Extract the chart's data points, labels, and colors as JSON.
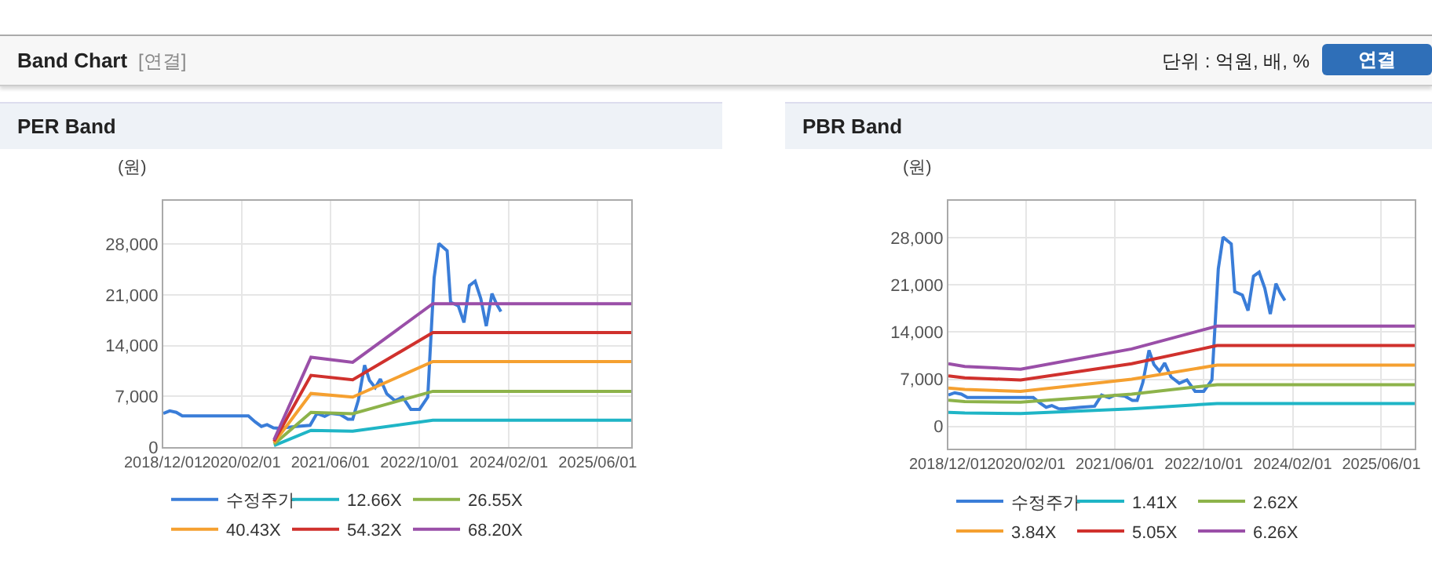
{
  "chart_data": [
    {
      "type": "line",
      "title": "PER Band",
      "ylabel": "(원)",
      "annotations": [
        "Band Chart",
        "[연결]",
        "단위 : 억원, 배, %",
        "연결"
      ],
      "xlim": [
        "2018-12-01",
        "2025-12-01"
      ],
      "xticks": [
        {
          "value": "2018-12-01",
          "label": "2018/12/01"
        },
        {
          "value": "2020-02-01",
          "label": "2020/02/01"
        },
        {
          "value": "2021-06-01",
          "label": "2021/06/01"
        },
        {
          "value": "2022-10-01",
          "label": "2022/10/01"
        },
        {
          "value": "2024-02-01",
          "label": "2024/02/01"
        },
        {
          "value": "2025-06-01",
          "label": "2025/06/01"
        }
      ],
      "ylim": [
        0,
        34000
      ],
      "yticks": [
        {
          "value": 0,
          "label": "0"
        },
        {
          "value": 7000,
          "label": "7,000"
        },
        {
          "value": 14000,
          "label": "14,000"
        },
        {
          "value": 21000,
          "label": "21,000"
        },
        {
          "value": 28000,
          "label": "28,000"
        }
      ],
      "grid": true,
      "legend": "bottom",
      "marker": "none",
      "line_style": "solid",
      "series": [
        {
          "name": "수정주가",
          "color": "#3a7dd8",
          "x": [
            "2018-12-01",
            "2019-01-05",
            "2019-02-10",
            "2019-03-15",
            "2020-03-10",
            "2020-04-15",
            "2020-05-20",
            "2020-06-20",
            "2020-07-25",
            "2020-08-25",
            "2020-11-25",
            "2021-02-10",
            "2021-03-20",
            "2021-05-01",
            "2021-06-01",
            "2021-07-25",
            "2021-09-05",
            "2021-10-01",
            "2021-11-01",
            "2021-12-05",
            "2022-01-01",
            "2022-02-01",
            "2022-03-01",
            "2022-04-05",
            "2022-05-20",
            "2022-07-01",
            "2022-08-15",
            "2022-10-01",
            "2022-11-15",
            "2022-12-20",
            "2023-01-15",
            "2023-03-01",
            "2023-03-20",
            "2023-05-01",
            "2023-06-01",
            "2023-07-01",
            "2023-08-01",
            "2023-09-01",
            "2023-10-01",
            "2023-11-01",
            "2023-11-25",
            "2023-12-20"
          ],
          "values": [
            4650,
            5000,
            4800,
            4300,
            4300,
            3500,
            2850,
            3100,
            2650,
            2600,
            2850,
            3000,
            4650,
            4250,
            4650,
            4500,
            3850,
            3850,
            6500,
            11300,
            9200,
            8200,
            9400,
            7350,
            6400,
            6900,
            5200,
            5200,
            6900,
            23400,
            28100,
            27100,
            20000,
            19500,
            17200,
            22300,
            22900,
            20500,
            16700,
            21200,
            19800,
            18700
          ]
        },
        {
          "name": "12.66X",
          "color": "#1fb5c6",
          "x": [
            "2020-07-28",
            "2021-02-15",
            "2021-10-01",
            "2022-12-13",
            "2025-12-01"
          ],
          "values": [
            200,
            2300,
            2200,
            3700,
            3700
          ]
        },
        {
          "name": "26.55X",
          "color": "#8db34a",
          "x": [
            "2020-07-28",
            "2021-02-15",
            "2021-10-01",
            "2022-12-13",
            "2025-12-01"
          ],
          "values": [
            400,
            4800,
            4600,
            7700,
            7700
          ]
        },
        {
          "name": "40.43X",
          "color": "#f5a030",
          "x": [
            "2020-07-28",
            "2021-02-15",
            "2021-10-01",
            "2022-12-13",
            "2025-12-01"
          ],
          "values": [
            600,
            7400,
            6900,
            11800,
            11800
          ]
        },
        {
          "name": "54.32X",
          "color": "#d0312d",
          "x": [
            "2020-07-28",
            "2021-02-15",
            "2021-10-01",
            "2022-12-13",
            "2025-12-01"
          ],
          "values": [
            800,
            9900,
            9300,
            15800,
            15800
          ]
        },
        {
          "name": "68.20X",
          "color": "#9a4fa8",
          "x": [
            "2020-07-28",
            "2021-02-15",
            "2021-10-01",
            "2022-12-13",
            "2025-12-01"
          ],
          "values": [
            1000,
            12400,
            11700,
            19800,
            19800
          ]
        }
      ]
    },
    {
      "type": "line",
      "title": "PBR Band",
      "ylabel": "(원)",
      "xlim": [
        "2018-12-01",
        "2025-12-01"
      ],
      "xticks": [
        {
          "value": "2018-12-01",
          "label": "2018/12/01"
        },
        {
          "value": "2020-02-01",
          "label": "2020/02/01"
        },
        {
          "value": "2021-06-01",
          "label": "2021/06/01"
        },
        {
          "value": "2022-10-01",
          "label": "2022/10/01"
        },
        {
          "value": "2024-02-01",
          "label": "2024/02/01"
        },
        {
          "value": "2025-06-01",
          "label": "2025/06/01"
        }
      ],
      "ylim": [
        -3300,
        33500
      ],
      "yticks": [
        {
          "value": 0,
          "label": "0"
        },
        {
          "value": 7000,
          "label": "7,000"
        },
        {
          "value": 14000,
          "label": "14,000"
        },
        {
          "value": 21000,
          "label": "21,000"
        },
        {
          "value": 28000,
          "label": "28,000"
        }
      ],
      "grid": true,
      "legend": "bottom",
      "marker": "none",
      "line_style": "solid",
      "series": [
        {
          "name": "수정주가",
          "color": "#3a7dd8",
          "x": [
            "2018-12-01",
            "2019-01-05",
            "2019-02-10",
            "2019-03-15",
            "2020-03-10",
            "2020-04-15",
            "2020-05-20",
            "2020-06-20",
            "2020-07-25",
            "2020-08-25",
            "2020-11-25",
            "2021-02-10",
            "2021-03-20",
            "2021-05-01",
            "2021-06-01",
            "2021-07-25",
            "2021-09-05",
            "2021-10-01",
            "2021-11-01",
            "2021-12-05",
            "2022-01-01",
            "2022-02-01",
            "2022-03-01",
            "2022-04-05",
            "2022-05-20",
            "2022-07-01",
            "2022-08-15",
            "2022-10-01",
            "2022-11-15",
            "2022-12-20",
            "2023-01-15",
            "2023-03-01",
            "2023-03-20",
            "2023-05-01",
            "2023-06-01",
            "2023-07-01",
            "2023-08-01",
            "2023-09-01",
            "2023-10-01",
            "2023-11-01",
            "2023-11-25",
            "2023-12-20"
          ],
          "values": [
            4650,
            5000,
            4800,
            4300,
            4300,
            3500,
            2850,
            3100,
            2650,
            2600,
            2850,
            3000,
            4650,
            4250,
            4650,
            4500,
            3850,
            3850,
            6500,
            11300,
            9200,
            8200,
            9400,
            7350,
            6400,
            6900,
            5200,
            5200,
            6900,
            23400,
            28100,
            27100,
            20000,
            19500,
            17200,
            22300,
            22900,
            20500,
            16700,
            21200,
            19800,
            18700
          ]
        },
        {
          "name": "1.41X",
          "color": "#1fb5c6",
          "x": [
            "2018-12-01",
            "2019-03-01",
            "2020-01-01",
            "2021-09-01",
            "2022-12-13",
            "2025-12-01"
          ],
          "values": [
            2100,
            2000,
            1900,
            2600,
            3400,
            3400
          ]
        },
        {
          "name": "2.62X",
          "color": "#8db34a",
          "x": [
            "2018-12-01",
            "2019-03-01",
            "2020-01-01",
            "2021-09-01",
            "2022-12-13",
            "2025-12-01"
          ],
          "values": [
            3900,
            3700,
            3600,
            4800,
            6200,
            6200
          ]
        },
        {
          "name": "3.84X",
          "color": "#f5a030",
          "x": [
            "2018-12-01",
            "2019-03-01",
            "2020-01-01",
            "2021-09-01",
            "2022-12-13",
            "2025-12-01"
          ],
          "values": [
            5700,
            5500,
            5200,
            7000,
            9100,
            9100
          ]
        },
        {
          "name": "5.05X",
          "color": "#d0312d",
          "x": [
            "2018-12-01",
            "2019-03-01",
            "2020-01-01",
            "2021-09-01",
            "2022-12-13",
            "2025-12-01"
          ],
          "values": [
            7500,
            7200,
            6900,
            9300,
            12000,
            12000
          ]
        },
        {
          "name": "6.26X",
          "color": "#9a4fa8",
          "x": [
            "2018-12-01",
            "2019-03-01",
            "2020-01-01",
            "2021-09-01",
            "2022-12-13",
            "2025-12-01"
          ],
          "values": [
            9300,
            8900,
            8500,
            11500,
            14900,
            14900
          ]
        }
      ]
    }
  ]
}
